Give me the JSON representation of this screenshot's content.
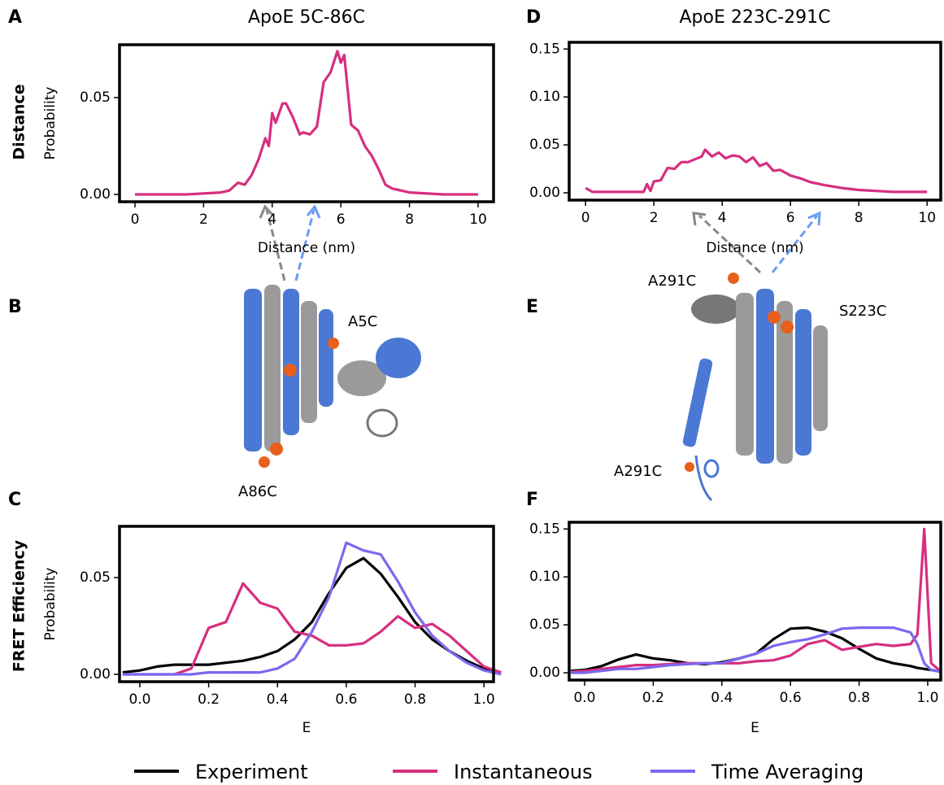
{
  "figure": {
    "panel_labels": [
      "A",
      "B",
      "C",
      "D",
      "E",
      "F"
    ],
    "row_labels": [
      "Distance",
      "FRET Efficiency"
    ],
    "structure_labels": [
      "A5C",
      "A86C",
      "A291C",
      "S223C",
      "A291C"
    ]
  },
  "chart_data": [
    {
      "type": "line",
      "title": "ApoE 5C-86C",
      "x_label": "Distance (nm)",
      "y_label": "Probability",
      "x": [
        0,
        0.5,
        1,
        1.5,
        2,
        2.5,
        2.75,
        3,
        3.2,
        3.4,
        3.6,
        3.8,
        3.9,
        4.0,
        4.1,
        4.3,
        4.4,
        4.6,
        4.8,
        4.9,
        5.1,
        5.3,
        5.5,
        5.7,
        5.9,
        6.0,
        6.1,
        6.3,
        6.5,
        6.7,
        6.9,
        7.1,
        7.3,
        7.5,
        8,
        9,
        10
      ],
      "values": [
        0,
        0,
        0,
        0,
        0.0005,
        0.001,
        0.002,
        0.006,
        0.005,
        0.01,
        0.018,
        0.029,
        0.025,
        0.042,
        0.037,
        0.047,
        0.047,
        0.04,
        0.031,
        0.032,
        0.031,
        0.035,
        0.058,
        0.063,
        0.074,
        0.068,
        0.072,
        0.036,
        0.033,
        0.025,
        0.02,
        0.013,
        0.005,
        0.003,
        0.001,
        0,
        0
      ],
      "color": "#d62f7f",
      "xlim": [
        -0.45,
        10.45
      ],
      "xticks": [
        0,
        2,
        4,
        6,
        8,
        10
      ],
      "ylim": [
        -0.0038,
        0.0773
      ],
      "yticks": [
        {
          "value": 0,
          "label": "0.00"
        },
        0.05
      ]
    },
    {
      "type": "line",
      "title": "ApoE 223C-291C",
      "x_label": "Distance (nm)",
      "x": [
        0,
        0.2,
        0.5,
        1,
        1.5,
        1.7,
        1.8,
        1.9,
        2.0,
        2.2,
        2.4,
        2.6,
        2.8,
        3.0,
        3.2,
        3.4,
        3.5,
        3.7,
        3.9,
        4.1,
        4.3,
        4.5,
        4.7,
        4.9,
        5.1,
        5.3,
        5.5,
        5.7,
        6.0,
        6.3,
        6.6,
        7,
        7.5,
        8,
        8.5,
        9,
        10
      ],
      "values": [
        0.005,
        0.001,
        0.001,
        0.001,
        0.001,
        0.001,
        0.009,
        0.002,
        0.012,
        0.013,
        0.026,
        0.025,
        0.032,
        0.032,
        0.035,
        0.038,
        0.045,
        0.038,
        0.042,
        0.036,
        0.039,
        0.038,
        0.032,
        0.037,
        0.028,
        0.031,
        0.023,
        0.024,
        0.018,
        0.015,
        0.011,
        0.008,
        0.005,
        0.003,
        0.002,
        0.001,
        0.001
      ],
      "color": "#d62f7f",
      "xlim": [
        -0.48,
        10.4
      ],
      "xticks": [
        0,
        2,
        4,
        6,
        8,
        10
      ],
      "ylim": [
        -0.0076,
        0.157
      ],
      "yticks": [
        {
          "value": 0,
          "label": "0.00"
        },
        0.05,
        {
          "value": 0.1,
          "label": "0.10"
        },
        0.15
      ]
    },
    {
      "type": "line",
      "x_label": "E",
      "y_label": "Probability",
      "x": [
        -0.05,
        0,
        0.05,
        0.1,
        0.15,
        0.2,
        0.25,
        0.3,
        0.35,
        0.4,
        0.45,
        0.5,
        0.55,
        0.6,
        0.65,
        0.7,
        0.75,
        0.8,
        0.85,
        0.9,
        0.95,
        1.0,
        1.05
      ],
      "series": [
        {
          "name": "Experiment",
          "color": "#000000",
          "values": [
            0.001,
            0.002,
            0.004,
            0.005,
            0.005,
            0.005,
            0.006,
            0.007,
            0.009,
            0.012,
            0.018,
            0.027,
            0.042,
            0.055,
            0.06,
            0.052,
            0.04,
            0.027,
            0.018,
            0.012,
            0.007,
            0.003,
            0.001
          ]
        },
        {
          "name": "Instantaneous",
          "color": "#d62f7f",
          "values": [
            0,
            0,
            0,
            0,
            0.003,
            0.024,
            0.027,
            0.047,
            0.037,
            0.034,
            0.022,
            0.02,
            0.015,
            0.015,
            0.016,
            0.022,
            0.03,
            0.024,
            0.026,
            0.02,
            0.012,
            0.004,
            0.001
          ]
        },
        {
          "name": "Time Averaging",
          "color": "#7b68ee",
          "values": [
            0,
            0,
            0,
            0,
            0,
            0.001,
            0.001,
            0.001,
            0.001,
            0.003,
            0.008,
            0.022,
            0.04,
            0.068,
            0.064,
            0.062,
            0.048,
            0.032,
            0.02,
            0.012,
            0.006,
            0.002,
            0
          ]
        }
      ],
      "xlim": [
        -0.059,
        1.028
      ],
      "xticks": [
        {
          "value": 0,
          "label": "0.0"
        },
        0.2,
        0.4,
        0.6,
        0.8,
        {
          "value": 1,
          "label": "1.0"
        }
      ],
      "ylim": [
        -0.0038,
        0.0765
      ],
      "yticks": [
        {
          "value": 0,
          "label": "0.00"
        },
        0.05
      ]
    },
    {
      "type": "line",
      "x_label": "E",
      "x": [
        -0.04,
        0,
        0.05,
        0.1,
        0.15,
        0.2,
        0.25,
        0.3,
        0.35,
        0.4,
        0.45,
        0.5,
        0.55,
        0.6,
        0.65,
        0.7,
        0.75,
        0.8,
        0.85,
        0.9,
        0.95,
        0.97,
        0.99,
        1.01,
        1.04
      ],
      "series": [
        {
          "color": "#000000",
          "values": [
            0.002,
            0.003,
            0.007,
            0.014,
            0.019,
            0.015,
            0.013,
            0.01,
            0.009,
            0.011,
            0.015,
            0.02,
            0.035,
            0.046,
            0.047,
            0.043,
            0.036,
            0.025,
            0.015,
            0.01,
            0.007,
            0.005,
            0.004,
            0.003,
            0.001
          ]
        },
        {
          "color": "#d62f7f",
          "values": [
            0.001,
            0.002,
            0.004,
            0.006,
            0.008,
            0.008,
            0.009,
            0.01,
            0.01,
            0.01,
            0.01,
            0.012,
            0.013,
            0.018,
            0.03,
            0.034,
            0.024,
            0.027,
            0.03,
            0.028,
            0.03,
            0.04,
            0.15,
            0.01,
            0.001
          ]
        },
        {
          "color": "#7b68ee",
          "values": [
            0,
            0,
            0.002,
            0.004,
            0.004,
            0.006,
            0.008,
            0.009,
            0.01,
            0.01,
            0.015,
            0.02,
            0.028,
            0.032,
            0.035,
            0.04,
            0.046,
            0.047,
            0.047,
            0.047,
            0.042,
            0.03,
            0.01,
            0.003,
            0.001
          ]
        }
      ],
      "xlim": [
        -0.045,
        1.038
      ],
      "xticks": [
        {
          "value": 0,
          "label": "0.0"
        },
        0.2,
        0.4,
        0.6,
        0.8,
        {
          "value": 1,
          "label": "1.0"
        }
      ],
      "ylim": [
        -0.0076,
        0.157
      ],
      "yticks": [
        {
          "value": 0,
          "label": "0.00"
        },
        0.05,
        {
          "value": 0.1,
          "label": "0.10"
        },
        0.15
      ]
    }
  ]
}
